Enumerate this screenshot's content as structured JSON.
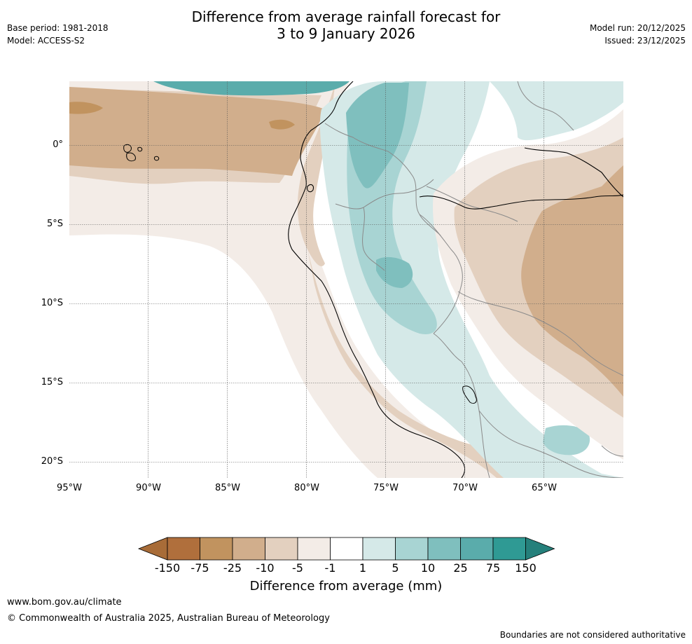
{
  "title": {
    "line1": "Difference from average rainfall forecast for",
    "line2": "3 to 9 January 2026"
  },
  "meta_left": {
    "base_period": "Base period: 1981-2018",
    "model": "Model: ACCESS-S2"
  },
  "meta_right": {
    "model_run": "Model run: 20/12/2025",
    "issued": "Issued: 23/12/2025"
  },
  "map": {
    "lat_labels": [
      "0°",
      "5°S",
      "10°S",
      "15°S",
      "20°S"
    ],
    "lon_labels": [
      "95°W",
      "90°W",
      "85°W",
      "80°W",
      "75°W",
      "70°W",
      "65°W"
    ]
  },
  "colorbar": {
    "tick_labels": [
      "-150",
      "-75",
      "-25",
      "-10",
      "-5",
      "-1",
      "1",
      "5",
      "10",
      "25",
      "75",
      "150"
    ],
    "colors": [
      "#a86c38",
      "#b06f3c",
      "#c1935f",
      "#d1ae8c",
      "#e3d0bf",
      "#f3ece7",
      "#ffffff",
      "#d5e9e8",
      "#a8d4d3",
      "#7fbfbe",
      "#5aacab",
      "#2f9a94",
      "#25807b"
    ],
    "title": "Difference from average (mm)"
  },
  "footer": {
    "website": "www.bom.gov.au/climate",
    "copyright": "© Commonwealth of Australia 2025, Australian Bureau of Meteorology",
    "disclaimer": "Boundaries are not considered authoritative"
  }
}
